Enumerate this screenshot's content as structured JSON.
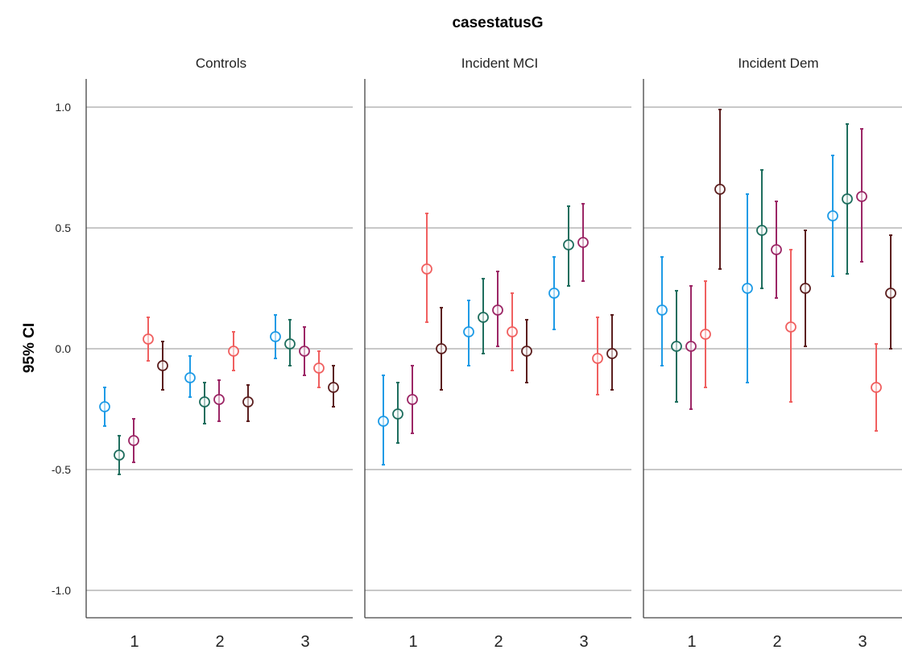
{
  "chart_data": {
    "type": "scatter",
    "title": "casestatusG",
    "ylabel": "95% CI",
    "xlabel": "",
    "ylim": [
      -1.1,
      1.1
    ],
    "yticks": [
      1.0,
      0.5,
      0.0,
      -0.5,
      -1.0
    ],
    "ytick_labels": [
      "1.0",
      "0.5",
      "0.0",
      "-0.5",
      "-1.0"
    ],
    "categories": [
      "1",
      "2",
      "3"
    ],
    "grid": true,
    "legend": "none",
    "series_colors": [
      "#1E9BE6",
      "#1F6E5E",
      "#9C2766",
      "#F06060",
      "#5C1F1F"
    ],
    "panels": [
      {
        "title": "Controls",
        "groups": [
          {
            "x": "1",
            "points": [
              {
                "series": 0,
                "mean": -0.24,
                "lower": -0.32,
                "upper": -0.16
              },
              {
                "series": 1,
                "mean": -0.44,
                "lower": -0.52,
                "upper": -0.36
              },
              {
                "series": 2,
                "mean": -0.38,
                "lower": -0.47,
                "upper": -0.29
              },
              {
                "series": 3,
                "mean": 0.04,
                "lower": -0.05,
                "upper": 0.13
              },
              {
                "series": 4,
                "mean": -0.07,
                "lower": -0.17,
                "upper": 0.03
              }
            ]
          },
          {
            "x": "2",
            "points": [
              {
                "series": 0,
                "mean": -0.12,
                "lower": -0.2,
                "upper": -0.03
              },
              {
                "series": 1,
                "mean": -0.22,
                "lower": -0.31,
                "upper": -0.14
              },
              {
                "series": 2,
                "mean": -0.21,
                "lower": -0.3,
                "upper": -0.13
              },
              {
                "series": 3,
                "mean": -0.01,
                "lower": -0.09,
                "upper": 0.07
              },
              {
                "series": 4,
                "mean": -0.22,
                "lower": -0.3,
                "upper": -0.15
              }
            ]
          },
          {
            "x": "3",
            "points": [
              {
                "series": 0,
                "mean": 0.05,
                "lower": -0.04,
                "upper": 0.14
              },
              {
                "series": 1,
                "mean": 0.02,
                "lower": -0.07,
                "upper": 0.12
              },
              {
                "series": 2,
                "mean": -0.01,
                "lower": -0.11,
                "upper": 0.09
              },
              {
                "series": 3,
                "mean": -0.08,
                "lower": -0.16,
                "upper": -0.01
              },
              {
                "series": 4,
                "mean": -0.16,
                "lower": -0.24,
                "upper": -0.07
              }
            ]
          }
        ]
      },
      {
        "title": "Incident MCI",
        "groups": [
          {
            "x": "1",
            "points": [
              {
                "series": 0,
                "mean": -0.3,
                "lower": -0.48,
                "upper": -0.11
              },
              {
                "series": 1,
                "mean": -0.27,
                "lower": -0.39,
                "upper": -0.14
              },
              {
                "series": 2,
                "mean": -0.21,
                "lower": -0.35,
                "upper": -0.07
              },
              {
                "series": 3,
                "mean": 0.33,
                "lower": 0.11,
                "upper": 0.56
              },
              {
                "series": 4,
                "mean": 0.0,
                "lower": -0.17,
                "upper": 0.17
              }
            ]
          },
          {
            "x": "2",
            "points": [
              {
                "series": 0,
                "mean": 0.07,
                "lower": -0.07,
                "upper": 0.2
              },
              {
                "series": 1,
                "mean": 0.13,
                "lower": -0.02,
                "upper": 0.29
              },
              {
                "series": 2,
                "mean": 0.16,
                "lower": 0.01,
                "upper": 0.32
              },
              {
                "series": 3,
                "mean": 0.07,
                "lower": -0.09,
                "upper": 0.23
              },
              {
                "series": 4,
                "mean": -0.01,
                "lower": -0.14,
                "upper": 0.12
              }
            ]
          },
          {
            "x": "3",
            "points": [
              {
                "series": 0,
                "mean": 0.23,
                "lower": 0.08,
                "upper": 0.38
              },
              {
                "series": 1,
                "mean": 0.43,
                "lower": 0.26,
                "upper": 0.59
              },
              {
                "series": 2,
                "mean": 0.44,
                "lower": 0.28,
                "upper": 0.6
              },
              {
                "series": 3,
                "mean": -0.04,
                "lower": -0.19,
                "upper": 0.13
              },
              {
                "series": 4,
                "mean": -0.02,
                "lower": -0.17,
                "upper": 0.14
              }
            ]
          }
        ]
      },
      {
        "title": "Incident Dem",
        "groups": [
          {
            "x": "1",
            "points": [
              {
                "series": 0,
                "mean": 0.16,
                "lower": -0.07,
                "upper": 0.38
              },
              {
                "series": 1,
                "mean": 0.01,
                "lower": -0.22,
                "upper": 0.24
              },
              {
                "series": 2,
                "mean": 0.01,
                "lower": -0.25,
                "upper": 0.26
              },
              {
                "series": 3,
                "mean": 0.06,
                "lower": -0.16,
                "upper": 0.28
              },
              {
                "series": 4,
                "mean": 0.66,
                "lower": 0.33,
                "upper": 0.99
              }
            ]
          },
          {
            "x": "2",
            "points": [
              {
                "series": 0,
                "mean": 0.25,
                "lower": -0.14,
                "upper": 0.64
              },
              {
                "series": 1,
                "mean": 0.49,
                "lower": 0.25,
                "upper": 0.74
              },
              {
                "series": 2,
                "mean": 0.41,
                "lower": 0.21,
                "upper": 0.61
              },
              {
                "series": 3,
                "mean": 0.09,
                "lower": -0.22,
                "upper": 0.41
              },
              {
                "series": 4,
                "mean": 0.25,
                "lower": 0.01,
                "upper": 0.49
              }
            ]
          },
          {
            "x": "3",
            "points": [
              {
                "series": 0,
                "mean": 0.55,
                "lower": 0.3,
                "upper": 0.8
              },
              {
                "series": 1,
                "mean": 0.62,
                "lower": 0.31,
                "upper": 0.93
              },
              {
                "series": 2,
                "mean": 0.63,
                "lower": 0.36,
                "upper": 0.91
              },
              {
                "series": 3,
                "mean": -0.16,
                "lower": -0.34,
                "upper": 0.02
              },
              {
                "series": 4,
                "mean": 0.23,
                "lower": 0.0,
                "upper": 0.47
              }
            ]
          }
        ]
      }
    ]
  }
}
